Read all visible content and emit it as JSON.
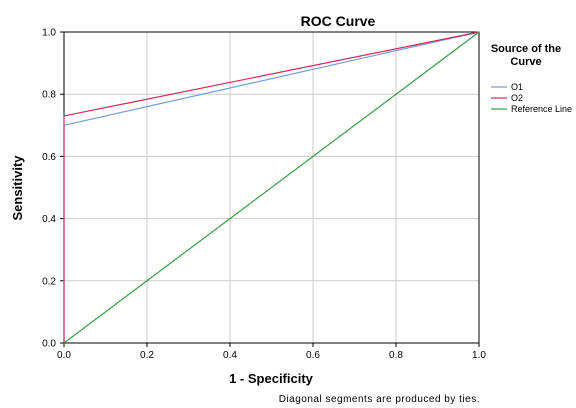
{
  "chart_data": {
    "type": "line",
    "title": "ROC Curve",
    "xlabel": "1 - Specificity",
    "ylabel": "Sensitivity",
    "xlim": [
      0,
      1
    ],
    "ylim": [
      0,
      1
    ],
    "x_ticks": [
      "0.0",
      "0.2",
      "0.4",
      "0.6",
      "0.8",
      "1.0"
    ],
    "y_ticks": [
      "0.0",
      "0.2",
      "0.4",
      "0.6",
      "0.8",
      "1.0"
    ],
    "grid": true,
    "legend": {
      "title_line1": "Source of the",
      "title_line2": "Curve",
      "placement": "right"
    },
    "series": [
      {
        "name": "O1",
        "color": "#6fa0dc",
        "x": [
          0,
          0,
          1
        ],
        "y": [
          0,
          0.7,
          1
        ]
      },
      {
        "name": "O2",
        "color": "#d4285a",
        "x": [
          0,
          0,
          1
        ],
        "y": [
          0,
          0.73,
          1
        ]
      },
      {
        "name": "Reference Line",
        "color": "#3c9a4a",
        "x": [
          0,
          1
        ],
        "y": [
          0,
          1
        ]
      }
    ],
    "footnote": "Diagonal segments are produced by ties."
  }
}
